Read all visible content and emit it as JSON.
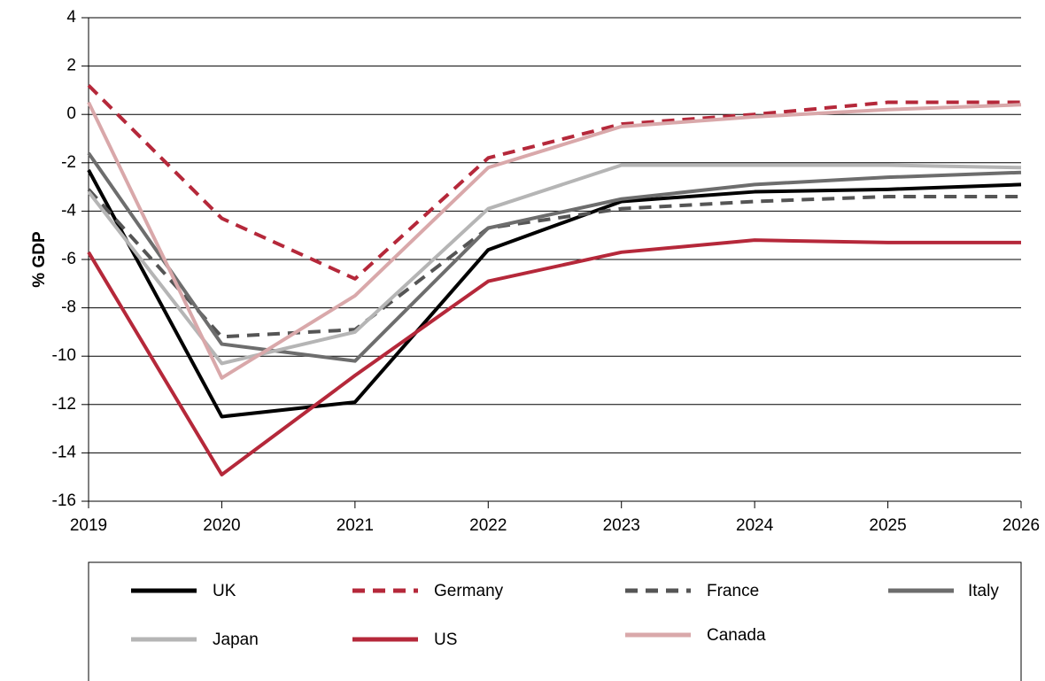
{
  "chart_data": {
    "type": "line",
    "y_label": "% GDP",
    "x": [
      2019,
      2020,
      2021,
      2022,
      2023,
      2024,
      2025,
      2026
    ],
    "xlim": [
      2019,
      2026
    ],
    "xticks": [
      2019,
      2020,
      2021,
      2022,
      2023,
      2024,
      2025,
      2026
    ],
    "ylim": [
      -16,
      4
    ],
    "yticks": [
      -16,
      -14,
      -12,
      -10,
      -8,
      -6,
      -4,
      -2,
      0,
      2,
      4
    ],
    "grid": true,
    "legend": "bottom",
    "series": [
      {
        "name": "UK",
        "color": "#000000",
        "dash": false,
        "values": [
          -2.3,
          -12.5,
          -11.9,
          -5.6,
          -3.6,
          -3.2,
          -3.1,
          -2.9
        ]
      },
      {
        "name": "Germany",
        "color": "#b5283a",
        "dash": true,
        "values": [
          1.2,
          -4.3,
          -6.8,
          -1.8,
          -0.4,
          0.0,
          0.5,
          0.5
        ]
      },
      {
        "name": "France",
        "color": "#555555",
        "dash": true,
        "values": [
          -3.1,
          -9.2,
          -8.9,
          -4.7,
          -3.9,
          -3.6,
          -3.4,
          -3.4
        ]
      },
      {
        "name": "Italy",
        "color": "#6d6d6d",
        "dash": false,
        "values": [
          -1.6,
          -9.5,
          -10.2,
          -4.7,
          -3.5,
          -2.9,
          -2.6,
          -2.4
        ]
      },
      {
        "name": "Japan",
        "color": "#b5b5b5",
        "dash": false,
        "values": [
          -3.2,
          -10.3,
          -9.0,
          -3.9,
          -2.1,
          -2.1,
          -2.1,
          -2.2
        ]
      },
      {
        "name": "US",
        "color": "#b5283a",
        "dash": false,
        "values": [
          -5.7,
          -14.9,
          -10.8,
          -6.9,
          -5.7,
          -5.2,
          -5.3,
          -5.3
        ]
      },
      {
        "name": "Canada",
        "color": "#d9a8aa",
        "dash": false,
        "values": [
          0.5,
          -10.9,
          -7.5,
          -2.2,
          -0.5,
          -0.1,
          0.2,
          0.4
        ]
      }
    ]
  }
}
